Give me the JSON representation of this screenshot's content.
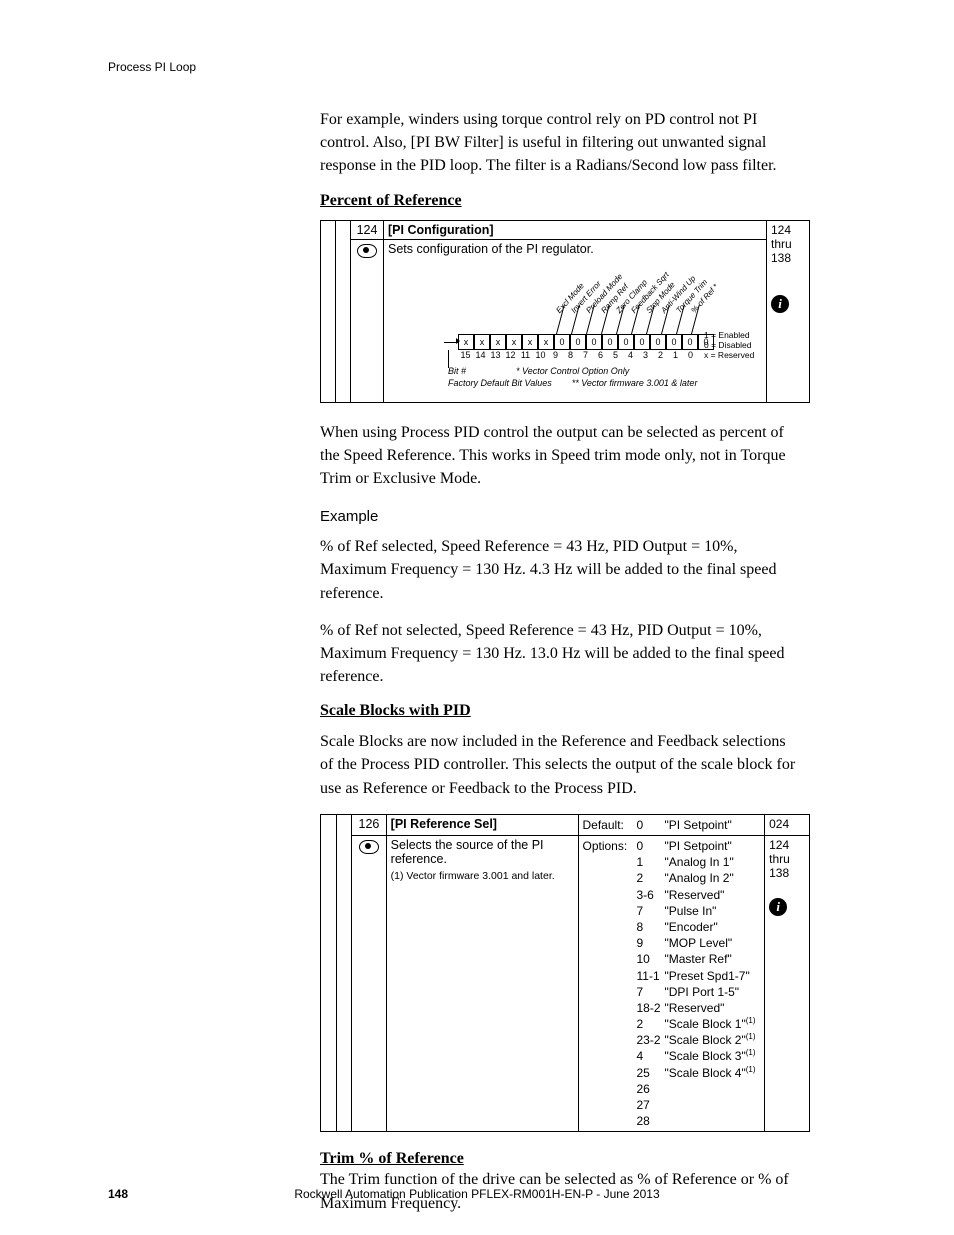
{
  "header": {
    "section": "Process PI Loop"
  },
  "intro_para": "For example, winders using torque control rely on PD control not PI control. Also, [PI BW Filter] is useful in filtering out unwanted signal response in the PID loop. The filter is a Radians/Second low pass filter.",
  "sec1_heading": "Percent of Reference",
  "param124": {
    "num": "124",
    "title": "[PI Configuration]",
    "desc": "Sets configuration of the PI regulator.",
    "right1": "124",
    "right2": "thru",
    "right3": "138",
    "bit_labels": [
      "Excl Mode",
      "Invert Error",
      "Preload Mode",
      "Ramp Ref",
      "Zero Clamp",
      "Feedback Sqrt",
      "Stop Mode",
      "Anti-Wind Up",
      "Torque Trim",
      "% of Ref *"
    ],
    "bit_vals": [
      "x",
      "x",
      "x",
      "x",
      "x",
      "x",
      "0",
      "0",
      "0",
      "0",
      "0",
      "0",
      "0",
      "0",
      "0",
      "0"
    ],
    "bit_nums": [
      "15",
      "14",
      "13",
      "12",
      "11",
      "10",
      "9",
      "8",
      "7",
      "6",
      "5",
      "4",
      "3",
      "2",
      "1",
      "0"
    ],
    "legend_1": "1 = Enabled",
    "legend_0": "0 = Disabled",
    "legend_x": "x = Reserved",
    "foot_bit": "Bit #",
    "foot_star": "* Vector Control Option Only",
    "foot_factory": "Factory Default Bit Values",
    "foot_starstar": "** Vector firmware 3.001 & later"
  },
  "para_after_124": "When using Process PID control the output can be selected as percent of the Speed Reference. This works in Speed trim mode only, not in Torque Trim or Exclusive Mode.",
  "example_heading": "Example",
  "example_p1": "% of Ref selected, Speed Reference = 43 Hz, PID Output = 10%, Maximum Frequency = 130 Hz. 4.3 Hz will be added to the final speed reference.",
  "example_p2": "% of Ref not selected, Speed Reference = 43 Hz, PID Output = 10%, Maximum Frequency = 130 Hz. 13.0 Hz will be added to the final speed reference.",
  "sec2_heading": "Scale Blocks with PID",
  "para_after_sec2": "Scale Blocks are now included in the Reference and Feedback selections of the Process PID controller. This selects the output of the scale block for use as Reference or Feedback to the Process PID.",
  "param126": {
    "num": "126",
    "title": "[PI Reference Sel]",
    "desc": "Selects the source of the PI reference.",
    "footnote": "(1)  Vector firmware 3.001 and later.",
    "default_label": "Default:",
    "default_num": "0",
    "default_txt": "\"PI Setpoint\"",
    "options_label": "Options:",
    "options": [
      {
        "n": "0",
        "t": "\"PI Setpoint\""
      },
      {
        "n": "1",
        "t": "\"Analog In 1\""
      },
      {
        "n": "2",
        "t": "\"Analog In 2\""
      },
      {
        "n": "3-6",
        "t": "\"Reserved\""
      },
      {
        "n": "7",
        "t": "\"Pulse In\""
      },
      {
        "n": "8",
        "t": "\"Encoder\""
      },
      {
        "n": "9",
        "t": "\"MOP Level\""
      },
      {
        "n": "10",
        "t": "\"Master Ref\""
      },
      {
        "n": "11-1",
        "t": "\"Preset Spd1-7\""
      },
      {
        "n": "7",
        "t": "\"DPI Port 1-5\""
      },
      {
        "n": "18-2",
        "t": "\"Reserved\""
      },
      {
        "n": "2",
        "t": "\"Scale Block 1\" (1)"
      },
      {
        "n": "23-2",
        "t": "\"Scale Block 2\" (1)"
      },
      {
        "n": "4",
        "t": "\"Scale Block 3\" (1)"
      },
      {
        "n": "25",
        "t": "\"Scale Block 4\" (1)"
      },
      {
        "n": "26",
        "t": ""
      },
      {
        "n": "27",
        "t": ""
      },
      {
        "n": "28",
        "t": ""
      }
    ],
    "right_a": "024",
    "right_b1": "124",
    "right_b2": "thru",
    "right_b3": "138"
  },
  "sec3_heading": "Trim % of Reference",
  "para_after_sec3": "The Trim function of the drive can be selected as % of Reference or % of Maximum Frequency.",
  "footer": {
    "page": "148",
    "pub": "Rockwell Automation Publication PFLEX-RM001H-EN-P - June 2013"
  },
  "colors": {
    "text": "#000000",
    "bg": "#ffffff"
  }
}
